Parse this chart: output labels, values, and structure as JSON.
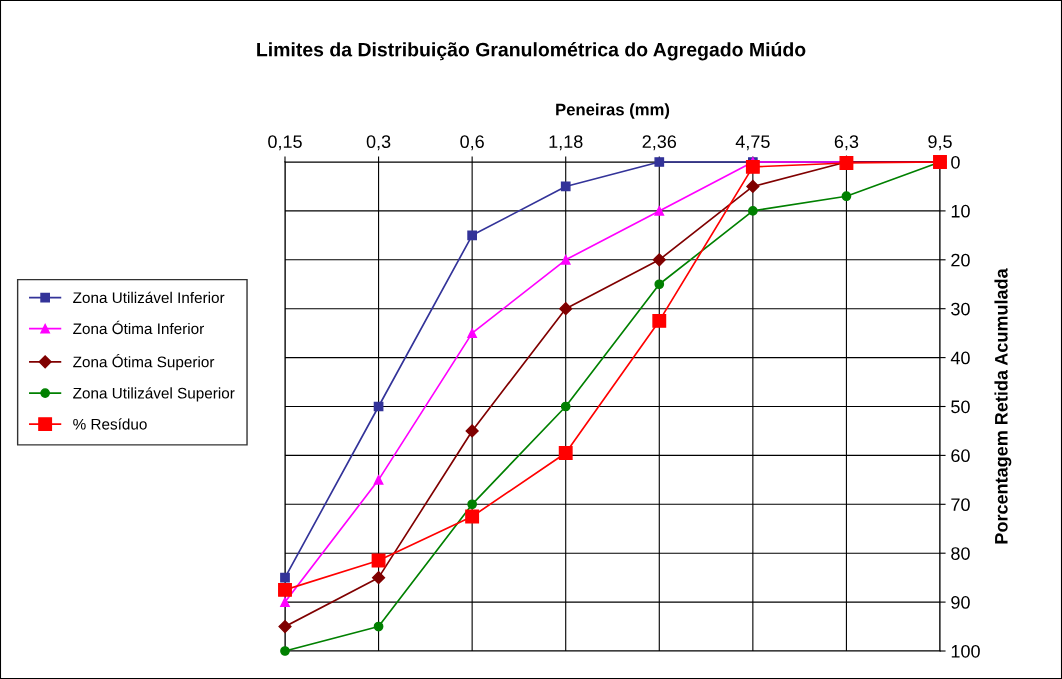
{
  "chart_data": {
    "type": "line",
    "title": "Limites da Distribuição Granulométrica do Agregado Miúdo",
    "xlabel": "Peneiras (mm)",
    "ylabel": "Porcentagem Retida Acumulada",
    "categories": [
      "0,15",
      "0,3",
      "0,6",
      "1,18",
      "2,36",
      "4,75",
      "6,3",
      "9,5"
    ],
    "series": [
      {
        "name": "Zona Utilizável Inferior",
        "color": "#333399",
        "marker": "square",
        "values": [
          85,
          50,
          15,
          5,
          0,
          0,
          0,
          0
        ]
      },
      {
        "name": "Zona Ótima Inferior",
        "color": "#ff00ff",
        "marker": "triangle",
        "values": [
          90,
          65,
          35,
          20,
          10,
          0,
          0,
          0
        ]
      },
      {
        "name": "Zona Ótima Superior",
        "color": "#800000",
        "marker": "diamond",
        "values": [
          95,
          85,
          55,
          30,
          20,
          5,
          0,
          0
        ]
      },
      {
        "name": "Zona Utilizável Superior",
        "color": "#008000",
        "marker": "circle",
        "values": [
          100,
          95,
          70,
          50,
          25,
          10,
          7,
          0
        ]
      },
      {
        "name": "% Resíduo",
        "color": "#ff0000",
        "marker": "square",
        "values": [
          87.5,
          81.5,
          72.5,
          59.5,
          32.5,
          1,
          0.2,
          0
        ]
      }
    ],
    "ylim": [
      100,
      0
    ],
    "yticks": [
      0,
      10,
      20,
      30,
      40,
      50,
      60,
      70,
      80,
      90,
      100
    ],
    "grid": true,
    "legend": "left",
    "line_style": "solid"
  }
}
